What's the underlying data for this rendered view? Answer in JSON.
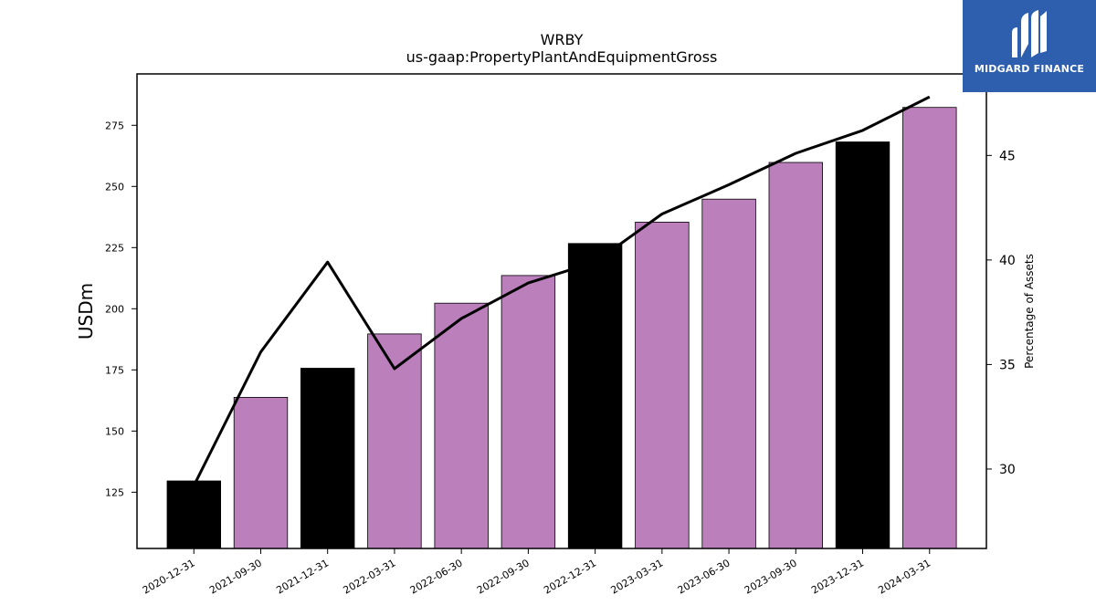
{
  "colors": {
    "accent": "#bb7fbb",
    "highlight": "#000000",
    "line": "#000000",
    "logo_bg": "#2d5fae"
  },
  "logo": {
    "text": "MIDGARD FINANCE",
    "icon": "midgard-logo-icon"
  },
  "chart_data": {
    "type": "bar",
    "title": "WRBY",
    "subtitle": "us-gaap:PropertyPlantAndEquipmentGross",
    "ylabel": "USDm",
    "y2label": "Percentage of Assets",
    "categories": [
      "2020-12-31",
      "2021-09-30",
      "2021-12-31",
      "2022-03-31",
      "2022-06-30",
      "2022-09-30",
      "2022-12-31",
      "2023-03-31",
      "2023-06-30",
      "2023-09-30",
      "2023-12-31",
      "2024-03-31"
    ],
    "series": [
      {
        "type": "bar",
        "values": [
          129.6,
          163.8,
          175.7,
          189.7,
          202.3,
          213.6,
          226.7,
          235.4,
          244.8,
          259.8,
          268.2,
          282.3
        ]
      },
      {
        "type": "line",
        "axis": "right",
        "values": [
          29.2,
          35.6,
          39.9,
          34.8,
          37.2,
          38.9,
          39.9,
          42.2,
          43.6,
          45.1,
          46.2,
          47.8
        ]
      }
    ],
    "highlight": [
      true,
      false,
      true,
      false,
      false,
      false,
      true,
      false,
      false,
      false,
      true,
      false
    ],
    "ylim": [
      102,
      296
    ],
    "y2lim": [
      26.2,
      48.9
    ],
    "yticks": [
      125,
      150,
      175,
      200,
      225,
      250,
      275
    ],
    "y2ticks": [
      30,
      35,
      40,
      45
    ],
    "grid": false,
    "legend": "none"
  }
}
